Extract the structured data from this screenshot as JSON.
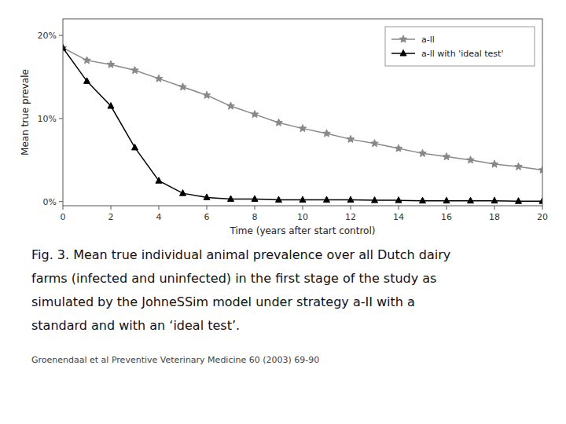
{
  "chart_data": {
    "type": "line",
    "x_label": "Time (years after start control)",
    "y_label": "Mean true prevale",
    "x": [
      0,
      1,
      2,
      3,
      4,
      5,
      6,
      7,
      8,
      9,
      10,
      11,
      12,
      13,
      14,
      15,
      16,
      17,
      18,
      19,
      20
    ],
    "series": [
      {
        "name": "a-ll",
        "color": "#888888",
        "marker": "star",
        "line_style": "solid",
        "values": [
          18.5,
          17.0,
          16.5,
          15.8,
          14.8,
          13.8,
          12.8,
          11.5,
          10.5,
          9.5,
          8.8,
          8.2,
          7.5,
          7.0,
          6.4,
          5.8,
          5.4,
          5.0,
          4.5,
          4.2,
          3.8
        ]
      },
      {
        "name": "a-ll with 'ideal test'",
        "color": "#000000",
        "marker": "triangle",
        "line_style": "solid",
        "values": [
          18.5,
          14.5,
          11.5,
          6.5,
          2.5,
          1.0,
          0.5,
          0.3,
          0.3,
          0.2,
          0.2,
          0.2,
          0.2,
          0.15,
          0.15,
          0.1,
          0.1,
          0.1,
          0.1,
          0.05,
          0.05
        ]
      }
    ],
    "xlim": [
      0,
      20
    ],
    "ylim": [
      -0.5,
      22
    ],
    "xticks": [
      0,
      2,
      4,
      6,
      8,
      10,
      12,
      14,
      16,
      18,
      20
    ],
    "yticks": [
      {
        "value": 0,
        "label": "0%"
      },
      {
        "value": 10,
        "label": "10%"
      },
      {
        "value": 20,
        "label": "20%"
      }
    ],
    "grid": false,
    "legend": "upper right",
    "annotations": [
      "Fig. 3. Mean true individual animal prevalence over all Dutch dairy",
      "farms (infected and uninfected) in the first stage of the study as",
      "simulated by the JohneSSim model under strategy a-II with a",
      "standard and with an ‘ideal test’.",
      "Groenendaal et al Preventive Veterinary Medicine 60 (2003) 69-90"
    ]
  }
}
